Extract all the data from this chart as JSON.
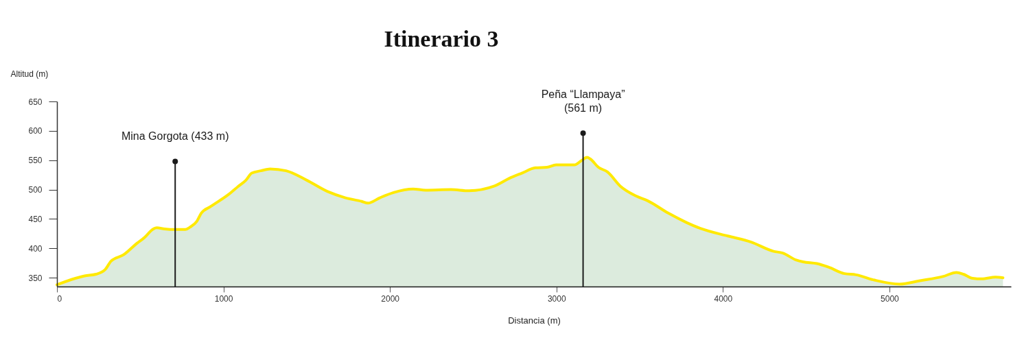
{
  "chart_data": {
    "type": "area",
    "title": "Itinerario 3",
    "xlabel": "Distancia (m)",
    "ylabel": "Altitud (m)",
    "x": [
      0,
      111,
      166,
      235,
      290,
      324,
      400,
      482,
      524,
      579,
      599,
      647,
      709,
      771,
      799,
      840,
      867,
      922,
      1032,
      1087,
      1135,
      1170,
      1225,
      1280,
      1376,
      1500,
      1623,
      1733,
      1830,
      1868,
      1939,
      2022,
      2139,
      2214,
      2366,
      2475,
      2627,
      2723,
      2792,
      2874,
      2943,
      2998,
      3108,
      3149,
      3184,
      3204,
      3252,
      3307,
      3383,
      3479,
      3548,
      3671,
      3781,
      3864,
      4029,
      4166,
      4304,
      4359,
      4441,
      4482,
      4565,
      4634,
      4730,
      4799,
      4909,
      5060,
      5184,
      5321,
      5403,
      5444,
      5500,
      5555,
      5637,
      5682
    ],
    "series": [
      {
        "color": "#dcebdd",
        "values": [
          338,
          349,
          353,
          356,
          364,
          378,
          389,
          409,
          418,
          433,
          435,
          433,
          432,
          432,
          436,
          446,
          460,
          471,
          492,
          505,
          516,
          528,
          532,
          535,
          532,
          516,
          497,
          486,
          480,
          477,
          486,
          495,
          501,
          499,
          500,
          498,
          506,
          520,
          528,
          537,
          538,
          542,
          542,
          549,
          555,
          552,
          538,
          530,
          506,
          489,
          481,
          460,
          444,
          434,
          421,
          411,
          395,
          392,
          380,
          377,
          374,
          368,
          357,
          355,
          346,
          339,
          345,
          352,
          359,
          356,
          349,
          348,
          351,
          350
        ]
      }
    ],
    "xlim": [
      0,
      5730
    ],
    "xticks": [
      0,
      1000,
      2000,
      3000,
      4000,
      5000
    ],
    "ylim": [
      335,
      650
    ],
    "yticks": [
      350,
      400,
      450,
      500,
      550,
      600,
      650
    ],
    "grid": false,
    "marker": "none",
    "line_style": "solid",
    "ref_lines": [
      {
        "axis": "x",
        "value": 710,
        "color": "#1a1a1a"
      },
      {
        "axis": "x",
        "value": 3160,
        "color": "#1a1a1a"
      }
    ],
    "annotations": [
      {
        "text": "Mina Gorgota (433 m)",
        "x": 710,
        "y": 548
      },
      {
        "text": "Peña “Llampaya”\n(561 m)",
        "x": 3160,
        "y": 596
      }
    ]
  }
}
